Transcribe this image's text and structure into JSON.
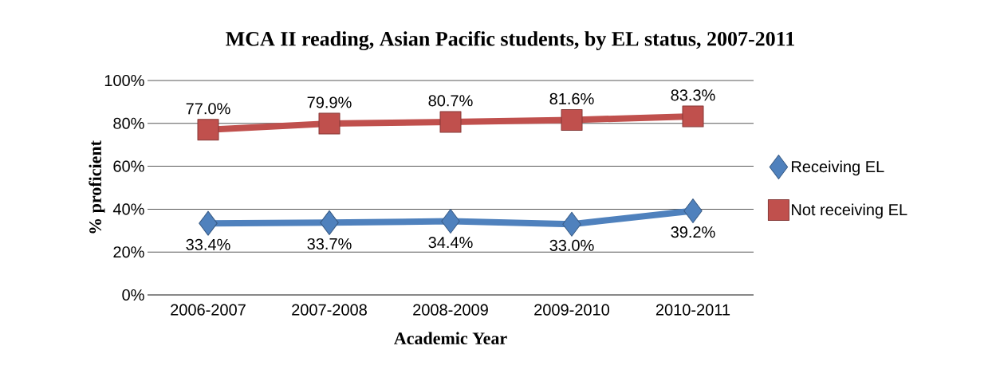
{
  "chart_data": {
    "type": "line",
    "title": "MCA II reading, Asian Pacific students, by EL status, 2007-2011",
    "xlabel": "Academic Year",
    "ylabel": "% proficient",
    "categories": [
      "2006-2007",
      "2007-2008",
      "2008-2009",
      "2009-2010",
      "2010-2011"
    ],
    "series": [
      {
        "name": "Receiving EL",
        "color": "#4f81bd",
        "marker": "diamond",
        "values": [
          33.4,
          33.7,
          34.4,
          33.0,
          39.2
        ],
        "value_labels": [
          "33.4%",
          "33.7%",
          "34.4%",
          "33.0%",
          "39.2%"
        ]
      },
      {
        "name": "Not receiving EL",
        "color": "#c0504d",
        "marker": "square",
        "values": [
          77.0,
          79.9,
          80.7,
          81.6,
          83.3
        ],
        "value_labels": [
          "77.0%",
          "79.9%",
          "80.7%",
          "81.6%",
          "83.3%"
        ]
      }
    ],
    "ylim": [
      0,
      100
    ],
    "yticks": [
      {
        "value": 0,
        "label": "0%"
      },
      {
        "value": 20,
        "label": "20%"
      },
      {
        "value": 40,
        "label": "40%"
      },
      {
        "value": 60,
        "label": "60%"
      },
      {
        "value": 80,
        "label": "80%"
      },
      {
        "value": 100,
        "label": "100%"
      }
    ],
    "grid": "y",
    "legend": "right"
  }
}
